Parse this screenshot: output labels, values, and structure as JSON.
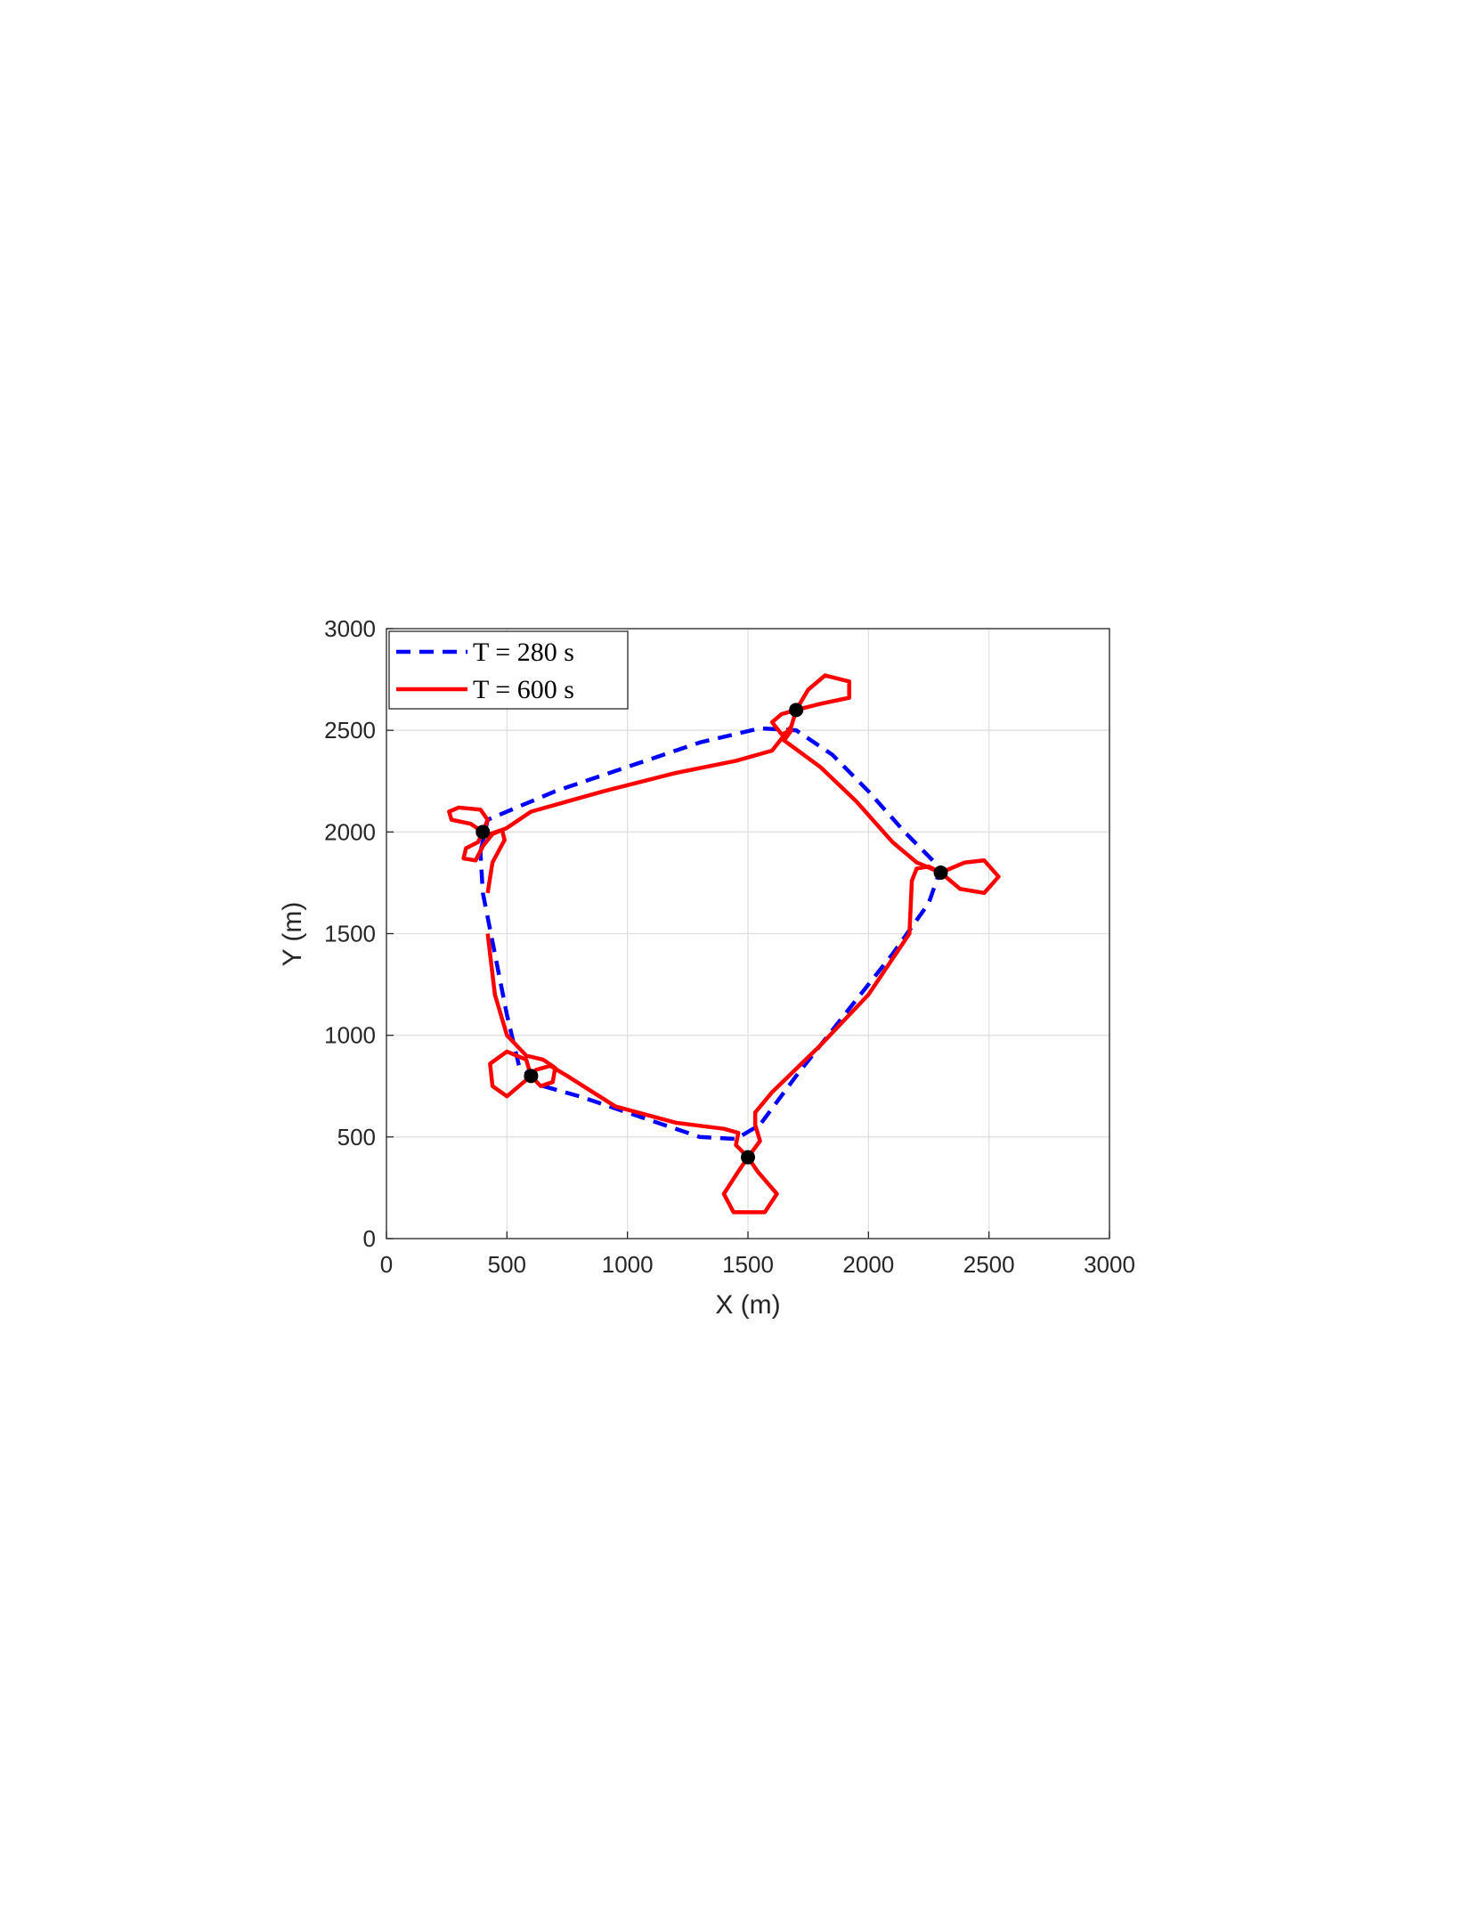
{
  "chart_data": {
    "type": "line",
    "xlabel": "X (m)",
    "ylabel": "Y (m)",
    "xlim": [
      0,
      3000
    ],
    "ylim": [
      0,
      3000
    ],
    "xticks": [
      0,
      500,
      1000,
      1500,
      2000,
      2500,
      3000
    ],
    "yticks": [
      0,
      500,
      1000,
      1500,
      2000,
      2500,
      3000
    ],
    "grid": true,
    "legend": "upper left",
    "series": [
      {
        "name": "T = 280 s",
        "color": "#0000ff",
        "dashed": true,
        "x": [
          390,
          420,
          700,
          1000,
          1300,
          1550,
          1700,
          1850,
          2000,
          2150,
          2300,
          2250,
          2100,
          1900,
          1700,
          1550,
          1450,
          1300,
          1050,
          800,
          650,
          550,
          500,
          450,
          400,
          390
        ],
        "values": [
          1900,
          2060,
          2200,
          2320,
          2440,
          2510,
          2500,
          2380,
          2200,
          2000,
          1820,
          1650,
          1400,
          1100,
          800,
          560,
          490,
          500,
          600,
          700,
          750,
          850,
          1100,
          1400,
          1700,
          1900
        ]
      },
      {
        "name": "T = 600 s",
        "color": "#ff0000",
        "dashed": false,
        "x": [
          420,
          440,
          490,
          480,
          430,
          400,
          350,
          270,
          260,
          300,
          390,
          420,
          400,
          380,
          330,
          320,
          370,
          400,
          440,
          500,
          600,
          900,
          1200,
          1450,
          1600,
          1680,
          1700,
          1750,
          1820,
          1920,
          1920,
          1800,
          1700,
          1640,
          1600,
          1640,
          1680,
          1650,
          1800,
          1950,
          2100,
          2200,
          2300,
          2400,
          2480,
          2540,
          2480,
          2380,
          2300,
          2250,
          2200,
          2180,
          2170,
          2000,
          1800,
          1600,
          1530,
          1530,
          1550,
          1500,
          1460,
          1400,
          1440,
          1570,
          1620,
          1540,
          1500,
          1450,
          1460,
          1400,
          1200,
          950,
          750,
          680,
          620,
          600,
          560,
          500,
          440,
          430,
          500,
          580,
          600,
          640,
          690,
          700,
          650,
          580,
          500,
          450,
          420
        ],
        "values": [
          1700,
          1850,
          1960,
          2010,
          1990,
          2000,
          2040,
          2060,
          2100,
          2120,
          2110,
          2060,
          2000,
          1950,
          1920,
          1870,
          1860,
          1930,
          1990,
          2020,
          2100,
          2200,
          2290,
          2350,
          2400,
          2520,
          2600,
          2700,
          2770,
          2740,
          2660,
          2630,
          2600,
          2580,
          2540,
          2480,
          2500,
          2450,
          2320,
          2150,
          1950,
          1850,
          1800,
          1850,
          1860,
          1780,
          1700,
          1720,
          1800,
          1830,
          1820,
          1760,
          1500,
          1200,
          950,
          720,
          620,
          560,
          480,
          400,
          330,
          220,
          130,
          130,
          220,
          330,
          400,
          460,
          520,
          540,
          570,
          650,
          800,
          850,
          830,
          800,
          760,
          700,
          750,
          860,
          920,
          880,
          800,
          750,
          770,
          840,
          880,
          900,
          1000,
          1200,
          1500
        ]
      }
    ],
    "points": {
      "color": "#000000",
      "x": [
        400,
        1700,
        2300,
        600,
        1500
      ],
      "y": [
        2000,
        2600,
        1800,
        800,
        400
      ]
    }
  }
}
